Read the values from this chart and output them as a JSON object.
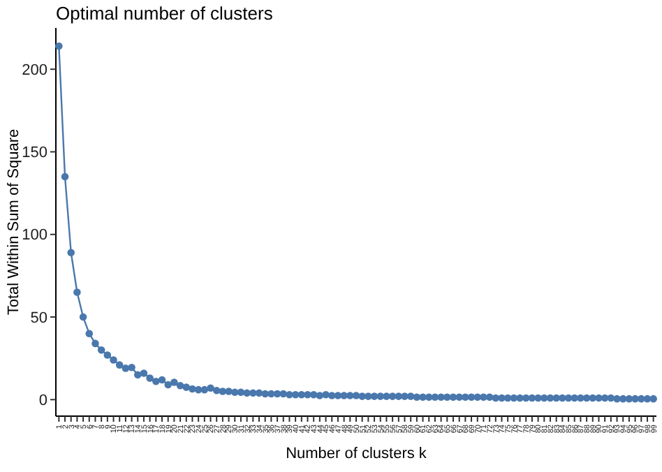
{
  "chart_data": {
    "type": "line",
    "title": "Optimal number of clusters",
    "xlabel": "Number of clusters k",
    "ylabel": "Total Within Sum of Square",
    "categories": [
      "1",
      "2",
      "3",
      "4",
      "5",
      "6",
      "7",
      "8",
      "9",
      "10",
      "11",
      "12",
      "13",
      "14",
      "15",
      "16",
      "17",
      "18",
      "19",
      "20",
      "21",
      "22",
      "23",
      "24",
      "25",
      "26",
      "27",
      "28",
      "29",
      "30",
      "31",
      "32",
      "33",
      "34",
      "35",
      "36",
      "37",
      "38",
      "39",
      "40",
      "41",
      "42",
      "43",
      "44",
      "45",
      "46",
      "47",
      "48",
      "49",
      "50",
      "51",
      "52",
      "53",
      "54",
      "55",
      "56",
      "57",
      "58",
      "59",
      "60",
      "61",
      "62",
      "63",
      "64",
      "65",
      "66",
      "67",
      "68",
      "69",
      "70",
      "71",
      "72",
      "73",
      "74",
      "75",
      "76",
      "77",
      "78",
      "79",
      "80",
      "81",
      "82",
      "83",
      "84",
      "85",
      "86",
      "87",
      "88",
      "89",
      "90",
      "91",
      "92",
      "93",
      "94",
      "95",
      "96",
      "97",
      "98",
      "99"
    ],
    "series": [
      {
        "color": "#4a78ad",
        "values": [
          214,
          135,
          89,
          65,
          50,
          40,
          34,
          30,
          27,
          24,
          21,
          19,
          19.5,
          15,
          16,
          13,
          11,
          12,
          9,
          10.5,
          8.5,
          7.5,
          6.5,
          6,
          6,
          7,
          5.5,
          5,
          5,
          4.5,
          4.5,
          4,
          4,
          4,
          3.5,
          3.5,
          3.5,
          3.5,
          3,
          3,
          3,
          3,
          3,
          2.5,
          3,
          2.5,
          2.5,
          2.5,
          2.5,
          2.5,
          2,
          2,
          2,
          2,
          2,
          2,
          2,
          2,
          2,
          1.5,
          1.5,
          1.5,
          1.5,
          1.5,
          1.5,
          1.5,
          1.5,
          1.5,
          1.5,
          1.5,
          1.5,
          1.5,
          1,
          1,
          1,
          1,
          1,
          1,
          1,
          1,
          1,
          1,
          1,
          1,
          1,
          1,
          1,
          1,
          1,
          1,
          1,
          1,
          0.5,
          0.5,
          0.5,
          0.5,
          0.5,
          0.5,
          0.5
        ]
      }
    ],
    "ylim": [
      -10,
      225
    ],
    "yticks": [
      0,
      50,
      100,
      150,
      200
    ],
    "marker": "circle",
    "grid": false
  }
}
